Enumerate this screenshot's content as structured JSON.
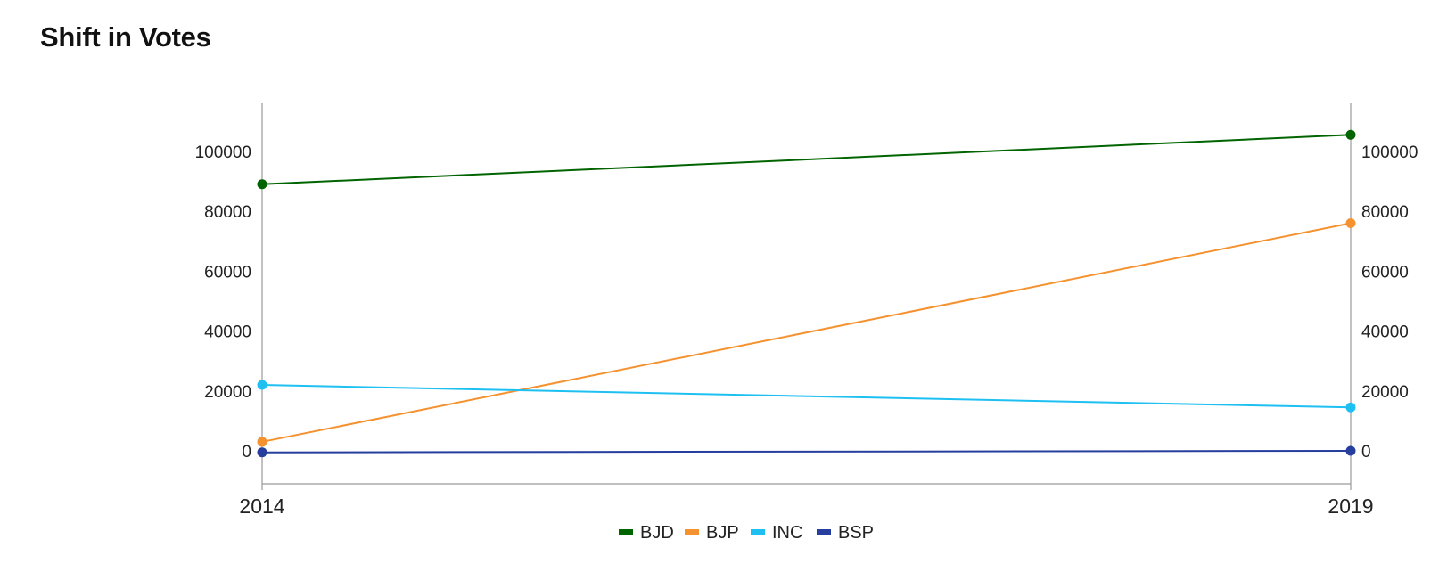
{
  "page": {
    "title": "Shift in Votes"
  },
  "chart_data": {
    "type": "line",
    "title": "Shift in Votes",
    "x": [
      "2014",
      "2019"
    ],
    "ylim": [
      -11000,
      116000
    ],
    "yticks": [
      0,
      20000,
      40000,
      60000,
      80000,
      100000
    ],
    "ytick_labels": [
      "0",
      "20000",
      "40000",
      "60000",
      "80000",
      "100000"
    ],
    "dual_y_axis": true,
    "grid": false,
    "legend_position": "bottom-center",
    "series": [
      {
        "name": "BJD",
        "color": "#006400",
        "values": [
          89000,
          105500
        ]
      },
      {
        "name": "BJP",
        "color": "#F5912F",
        "values": [
          3000,
          76000
        ]
      },
      {
        "name": "INC",
        "color": "#1EC0F2",
        "values": [
          22000,
          14500
        ]
      },
      {
        "name": "BSP",
        "color": "#263F9E",
        "values": [
          -500,
          0
        ]
      }
    ]
  }
}
